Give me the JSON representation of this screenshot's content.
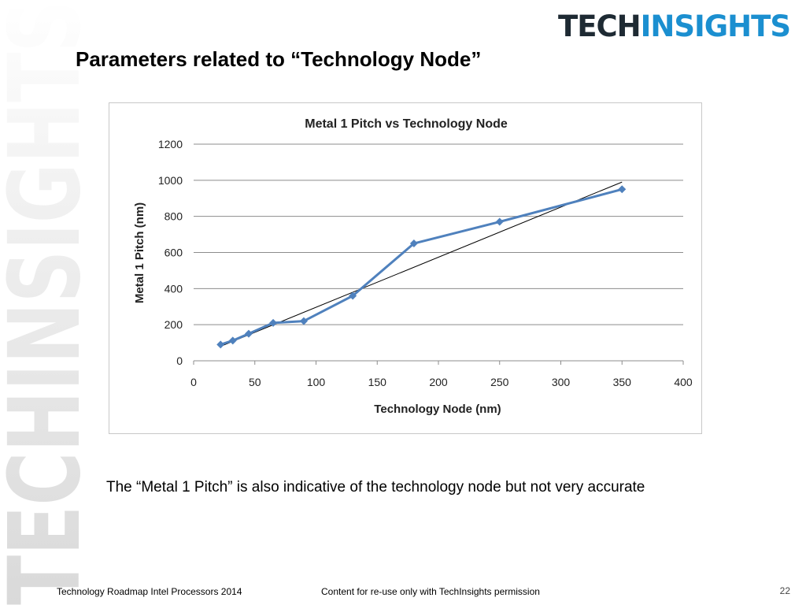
{
  "brand": {
    "part1": "TECH",
    "part2": "INSIGHTS",
    "watermark": "TECHINSIGHTS"
  },
  "slide": {
    "title": "Parameters related to “Technology Node”",
    "caption": "The “Metal 1 Pitch” is also indicative of the technology node but not very accurate"
  },
  "footer": {
    "left": "Technology Roadmap Intel Processors 2014",
    "center": "Content for re-use only with TechInsights permission",
    "page": "22"
  },
  "chart_data": {
    "type": "line",
    "title": "Metal 1 Pitch vs Technology Node",
    "xlabel": "Technology Node (nm)",
    "ylabel": "Metal 1  Pitch (nm)",
    "xlim": [
      0,
      400
    ],
    "ylim": [
      0,
      1200
    ],
    "xticks": [
      "0",
      "50",
      "100",
      "150",
      "200",
      "250",
      "300",
      "350",
      "400"
    ],
    "yticks": [
      "0",
      "200",
      "400",
      "600",
      "800",
      "1000",
      "1200"
    ],
    "grid": "horizontal",
    "legend": "none",
    "series": [
      {
        "x": [
          22,
          32,
          45,
          65,
          90,
          130,
          180,
          250,
          350
        ],
        "y": [
          90,
          112,
          150,
          210,
          220,
          360,
          650,
          770,
          950
        ],
        "color": "#4f81bd",
        "marker": "diamond"
      }
    ],
    "trendline": {
      "x": [
        22,
        350
      ],
      "y": [
        80,
        990
      ],
      "color": "#000000"
    }
  }
}
